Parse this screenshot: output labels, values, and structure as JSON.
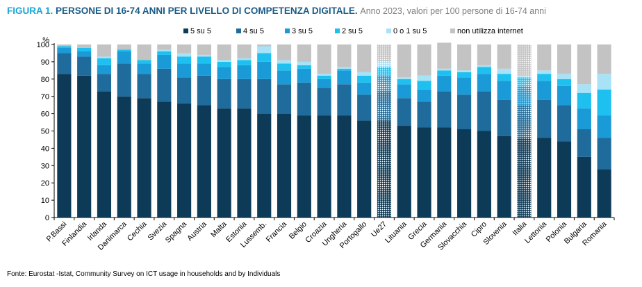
{
  "header": {
    "figure_label": "FIGURA 1.",
    "title": "PERSONE DI 16-74 ANNI PER LIVELLO DI COMPETENZA DIGITALE.",
    "subtitle": "Anno 2023, valori per 100 persone di 16-74 anni"
  },
  "footer": {
    "source": "Fonte: Eurostat -Istat, Community Survey on ICT usage in households and by Individuals"
  },
  "chart_data": {
    "type": "bar",
    "stacked": true,
    "ylabel": "%",
    "ylim": [
      0,
      100
    ],
    "yticks": [
      0,
      10,
      20,
      30,
      40,
      50,
      60,
      70,
      80,
      90,
      100
    ],
    "grid": false,
    "legend_position": "top",
    "highlighted_categories": [
      "Ue27",
      "Italia"
    ],
    "categories": [
      "P.Bassi",
      "Finlandia",
      "Irlanda",
      "Danimarca",
      "Cechia",
      "Svezia",
      "Spagna",
      "Austria",
      "Malta",
      "Estonia",
      "Lussemb.",
      "Francia",
      "Belgio",
      "Croazia",
      "Ungheria",
      "Portogallo",
      "Ue27",
      "Lituania",
      "Grecia",
      "Germania",
      "Slovacchia",
      "Cipro",
      "Slovenia",
      "Italia",
      "Lettonia",
      "Polonia",
      "Bulgaria",
      "Romania"
    ],
    "series": [
      {
        "name": "5 su 5",
        "color": "#0d3a57",
        "values": [
          83,
          82,
          73,
          70,
          69,
          67,
          66,
          65,
          63,
          63,
          60,
          60,
          59,
          59,
          59,
          56,
          56,
          53,
          52,
          52,
          51,
          50,
          47,
          46,
          46,
          44,
          35,
          28
        ]
      },
      {
        "name": "4 su 5",
        "color": "#1f6c9c",
        "values": [
          12,
          11,
          10,
          19,
          14,
          19,
          15,
          17,
          17,
          17,
          20,
          17,
          19,
          16,
          18,
          15,
          17,
          16,
          15,
          21,
          20,
          23,
          21,
          19,
          22,
          21,
          16,
          18
        ]
      },
      {
        "name": "3 su 5",
        "color": "#1a9ad6",
        "values": [
          3,
          3,
          5,
          7,
          6,
          8,
          8,
          7,
          7,
          8,
          10,
          8,
          8,
          5,
          8,
          7,
          9,
          8,
          7,
          9,
          10,
          10,
          11,
          11,
          11,
          11,
          12,
          13
        ]
      },
      {
        "name": "2 su 5",
        "color": "#1ec0f0",
        "values": [
          1,
          2,
          4,
          1,
          2,
          2,
          4,
          4,
          3,
          3,
          5,
          4,
          2,
          2,
          1,
          4,
          5,
          3,
          5,
          3,
          3,
          4,
          4,
          5,
          4,
          4,
          9,
          15
        ]
      },
      {
        "name": "0  o 1 su 5",
        "color": "#a7e2f7",
        "values": [
          0,
          0,
          1,
          0,
          0,
          1,
          2,
          1,
          1,
          1,
          4,
          2,
          2,
          1,
          1,
          2,
          3,
          1,
          3,
          1,
          1,
          1,
          3,
          1,
          2,
          3,
          5,
          9
        ]
      },
      {
        "name": "non utilizza internet",
        "color": "#c3c3c3",
        "values": [
          1,
          2,
          7,
          3,
          9,
          3,
          5,
          6,
          9,
          8,
          1,
          9,
          10,
          17,
          13,
          16,
          10,
          19,
          18,
          15,
          15,
          12,
          14,
          18,
          15,
          17,
          23,
          17
        ]
      }
    ]
  }
}
